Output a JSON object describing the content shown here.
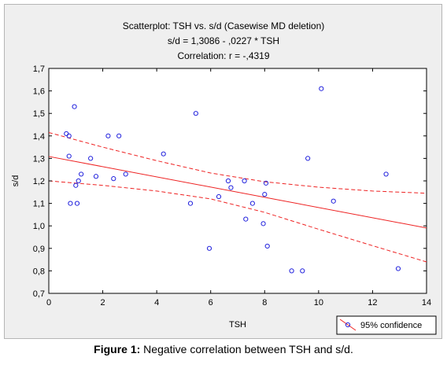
{
  "chart_data": {
    "type": "scatter",
    "title_lines": [
      "Scatterplot: TSH vs. s/d (Casewise MD deletion)",
      "s/d = 1,3086 - ,0227  * TSH",
      "Correlation: r = -,4319"
    ],
    "xlabel": "TSH",
    "ylabel": "s/d",
    "xlim": [
      0,
      14
    ],
    "ylim": [
      0.7,
      1.7
    ],
    "x_ticks": [
      "0",
      "2",
      "4",
      "6",
      "8",
      "10",
      "12",
      "14"
    ],
    "y_ticks": [
      "0,7",
      "0,8",
      "0,9",
      "1,0",
      "1,1",
      "1,2",
      "1,3",
      "1,4",
      "1,5",
      "1,6",
      "1,7"
    ],
    "grid": false,
    "legend_position": "bottom-right",
    "legend_label": "95% confidence",
    "regression": {
      "intercept": 1.3086,
      "slope": -0.0227
    },
    "confidence_band": {
      "upper": [
        [
          0,
          1.415
        ],
        [
          2,
          1.35
        ],
        [
          4,
          1.29
        ],
        [
          6,
          1.235
        ],
        [
          8,
          1.196
        ],
        [
          10,
          1.172
        ],
        [
          12,
          1.155
        ],
        [
          14,
          1.145
        ]
      ],
      "lower": [
        [
          0,
          1.2
        ],
        [
          2,
          1.18
        ],
        [
          4,
          1.155
        ],
        [
          6,
          1.12
        ],
        [
          8,
          1.06
        ],
        [
          10,
          0.985
        ],
        [
          12,
          0.912
        ],
        [
          14,
          0.84
        ]
      ]
    },
    "points": [
      {
        "x": 0.65,
        "y": 1.41
      },
      {
        "x": 0.75,
        "y": 1.4
      },
      {
        "x": 0.75,
        "y": 1.31
      },
      {
        "x": 0.8,
        "y": 1.1
      },
      {
        "x": 0.95,
        "y": 1.53
      },
      {
        "x": 1.0,
        "y": 1.18
      },
      {
        "x": 1.05,
        "y": 1.1
      },
      {
        "x": 1.1,
        "y": 1.2
      },
      {
        "x": 1.2,
        "y": 1.23
      },
      {
        "x": 1.55,
        "y": 1.3
      },
      {
        "x": 1.75,
        "y": 1.22
      },
      {
        "x": 2.2,
        "y": 1.4
      },
      {
        "x": 2.4,
        "y": 1.21
      },
      {
        "x": 2.6,
        "y": 1.4
      },
      {
        "x": 2.85,
        "y": 1.23
      },
      {
        "x": 4.25,
        "y": 1.32
      },
      {
        "x": 5.25,
        "y": 1.1
      },
      {
        "x": 5.45,
        "y": 1.5
      },
      {
        "x": 5.95,
        "y": 0.9
      },
      {
        "x": 6.3,
        "y": 1.13
      },
      {
        "x": 6.65,
        "y": 1.2
      },
      {
        "x": 6.75,
        "y": 1.17
      },
      {
        "x": 7.25,
        "y": 1.2
      },
      {
        "x": 7.3,
        "y": 1.03
      },
      {
        "x": 7.55,
        "y": 1.1
      },
      {
        "x": 7.95,
        "y": 1.01
      },
      {
        "x": 8.0,
        "y": 1.14
      },
      {
        "x": 8.05,
        "y": 1.19
      },
      {
        "x": 8.1,
        "y": 0.91
      },
      {
        "x": 9.0,
        "y": 0.8
      },
      {
        "x": 9.4,
        "y": 0.8
      },
      {
        "x": 9.6,
        "y": 1.3
      },
      {
        "x": 10.1,
        "y": 1.61
      },
      {
        "x": 10.55,
        "y": 1.11
      },
      {
        "x": 12.5,
        "y": 1.23
      },
      {
        "x": 12.95,
        "y": 0.81
      }
    ],
    "colors": {
      "points": "#2222dd",
      "lines": "#ee2222",
      "plot_bg": "#ffffff",
      "panel_bg": "#efefef"
    }
  },
  "caption": {
    "label": "Figure 1:",
    "text": " Negative correlation between TSH and s/d."
  }
}
